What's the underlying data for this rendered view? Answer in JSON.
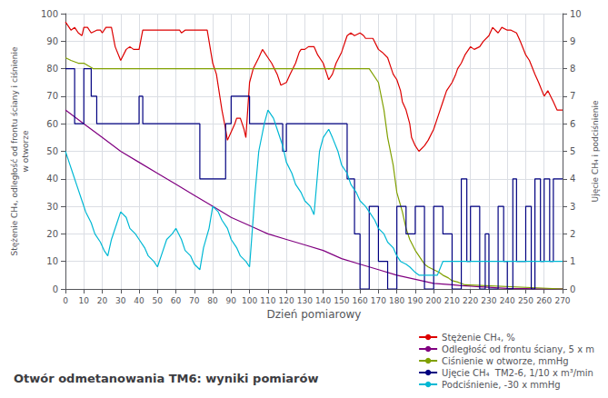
{
  "chart_data": {
    "type": "line",
    "title": "Otwór odmetanowania TM6: wyniki pomiarów",
    "xlabel": "Dzień pomiarowy",
    "ylabel": "Stężenie CH₄, odległość od frontu ściany i ciśnienie\nw otworze",
    "y2label": "Ujęcie CH₄ i podciśnienie",
    "xlim": [
      0,
      270
    ],
    "xticks": [
      0,
      10,
      20,
      30,
      40,
      50,
      60,
      70,
      80,
      90,
      100,
      110,
      120,
      130,
      140,
      150,
      160,
      170,
      180,
      190,
      200,
      210,
      220,
      230,
      240,
      250,
      260,
      270
    ],
    "ylim": [
      0,
      100
    ],
    "yticks": [
      0,
      10,
      20,
      30,
      40,
      50,
      60,
      70,
      80,
      90,
      100
    ],
    "y2lim": [
      0,
      10
    ],
    "y2ticks": [
      0,
      1,
      2,
      3,
      4,
      5,
      6,
      7,
      8,
      9,
      10
    ],
    "grid": true,
    "legend": "lower right",
    "series": [
      {
        "name": "Stężenie CH₄, %",
        "color": "#dd0000",
        "x": [
          0,
          1,
          3,
          5,
          7,
          9,
          10,
          12,
          14,
          17,
          19,
          20,
          22,
          25,
          27,
          30,
          33,
          35,
          37,
          40,
          42,
          45,
          47,
          50,
          52,
          53,
          55,
          57,
          60,
          62,
          63,
          65,
          67,
          70,
          72,
          75,
          77,
          80,
          82,
          85,
          87,
          88,
          90,
          92,
          93,
          95,
          97,
          98,
          100,
          102,
          105,
          107,
          108,
          110,
          112,
          115,
          117,
          120,
          122,
          125,
          127,
          128,
          130,
          132,
          135,
          137,
          140,
          142,
          143,
          145,
          147,
          150,
          152,
          153,
          155,
          157,
          160,
          162,
          163,
          165,
          167,
          170,
          172,
          175,
          177,
          178,
          180,
          182,
          183,
          185,
          187,
          188,
          190,
          192,
          195,
          197,
          200,
          202,
          205,
          207,
          210,
          212,
          213,
          215,
          217,
          220,
          222,
          225,
          227,
          230,
          232,
          235,
          237,
          240,
          242,
          245,
          247,
          250,
          252,
          255,
          257,
          260,
          262,
          265,
          267,
          270
        ],
        "values": [
          97,
          96,
          94,
          95,
          93,
          92,
          95,
          95,
          93,
          94,
          94,
          93,
          95,
          95,
          88,
          83,
          87,
          88,
          87,
          87,
          94,
          94,
          94,
          94,
          94,
          94,
          94,
          94,
          94,
          94,
          93,
          94,
          94,
          94,
          94,
          94,
          94,
          82,
          78,
          65,
          58,
          54,
          57,
          60,
          62,
          62,
          58,
          55,
          75,
          80,
          84,
          87,
          86,
          84,
          82,
          78,
          74,
          75,
          78,
          82,
          86,
          87,
          87,
          88,
          88,
          85,
          82,
          78,
          76,
          78,
          82,
          86,
          90,
          92,
          93,
          92,
          93,
          92,
          91,
          91,
          91,
          87,
          86,
          84,
          80,
          78,
          76,
          72,
          68,
          65,
          60,
          55,
          52,
          50,
          52,
          54,
          58,
          62,
          68,
          72,
          75,
          78,
          80,
          82,
          85,
          88,
          87,
          88,
          90,
          92,
          95,
          93,
          95,
          94,
          94,
          93,
          90,
          85,
          83,
          78,
          75,
          70,
          72,
          68,
          65,
          65
        ]
      },
      {
        "name": "Odległość od frontu ściany, 5 x m",
        "color": "#800080",
        "x": [
          0,
          10,
          20,
          30,
          40,
          50,
          60,
          70,
          80,
          90,
          100,
          110,
          120,
          130,
          140,
          150,
          160,
          170,
          180,
          190,
          200,
          205,
          210,
          215,
          220,
          225,
          230,
          235,
          240,
          245,
          250,
          255,
          260,
          265,
          270
        ],
        "values": [
          65,
          60,
          55,
          50,
          46,
          42,
          38,
          34,
          30,
          26,
          23,
          20,
          18,
          16,
          14,
          11,
          9,
          7,
          5,
          3.5,
          2,
          1.8,
          1.5,
          1.2,
          1.0,
          0.8,
          0.6,
          0.4,
          0.2,
          0.15,
          0.1,
          0.05,
          0.02,
          0.01,
          0.01
        ]
      },
      {
        "name": "Ciśnienie w otworze, mmHg",
        "color": "#80a000",
        "x": [
          0,
          3,
          7,
          10,
          15,
          17,
          19,
          20,
          22,
          100,
          105,
          110,
          120,
          130,
          140,
          150,
          155,
          160,
          165,
          170,
          173,
          175,
          178,
          180,
          183,
          185,
          187,
          190,
          193,
          195,
          197,
          200,
          203,
          205,
          208,
          210,
          213,
          215,
          217,
          270
        ],
        "values": [
          84,
          83,
          82,
          82,
          80,
          80,
          80,
          80,
          80,
          80,
          80,
          80,
          80,
          80,
          80,
          80,
          80,
          80,
          80,
          75,
          65,
          55,
          45,
          35,
          28,
          22,
          18,
          14,
          11,
          9,
          8,
          7,
          6,
          5,
          4,
          3,
          2.5,
          2,
          1.5,
          0
        ]
      },
      {
        "name": "Ujęcie CH₄  TM2-6, 1/10 x m³/min",
        "color": "#000080",
        "x": [
          0,
          0,
          5,
          5,
          10,
          10,
          14,
          14,
          17,
          17,
          20,
          20,
          23,
          23,
          25,
          25,
          30,
          30,
          35,
          35,
          40,
          40,
          42,
          42,
          47,
          47,
          50,
          50,
          55,
          55,
          60,
          60,
          63,
          63,
          65,
          65,
          70,
          70,
          73,
          73,
          75,
          75,
          80,
          80,
          83,
          83,
          87,
          87,
          90,
          90,
          95,
          95,
          100,
          100,
          103,
          103,
          107,
          107,
          110,
          110,
          115,
          115,
          118,
          118,
          120,
          120,
          125,
          125,
          128,
          128,
          133,
          133,
          135,
          135,
          140,
          140,
          143,
          143,
          145,
          145,
          150,
          150,
          153,
          153,
          157,
          157,
          160,
          160,
          165,
          165,
          170,
          170,
          175,
          175,
          180,
          180,
          185,
          185,
          190,
          190,
          195,
          195,
          200,
          200,
          205,
          205,
          210,
          210,
          215,
          215,
          218,
          218,
          220,
          220,
          225,
          225,
          228,
          228,
          230,
          230,
          235,
          235,
          238,
          238,
          240,
          240,
          243,
          243,
          245,
          245,
          250,
          250,
          253,
          253,
          255,
          255,
          258,
          258,
          260,
          260,
          263,
          263,
          265,
          265,
          268,
          268,
          270
        ],
        "values": [
          80,
          80,
          80,
          60,
          60,
          80,
          80,
          70,
          70,
          60,
          60,
          60,
          60,
          60,
          60,
          60,
          60,
          60,
          60,
          60,
          60,
          70,
          70,
          60,
          60,
          60,
          60,
          60,
          60,
          60,
          60,
          60,
          60,
          60,
          60,
          60,
          60,
          60,
          60,
          40,
          40,
          40,
          40,
          40,
          40,
          40,
          40,
          60,
          60,
          70,
          70,
          70,
          70,
          60,
          60,
          60,
          60,
          60,
          60,
          60,
          60,
          60,
          60,
          50,
          50,
          60,
          60,
          60,
          60,
          60,
          60,
          60,
          60,
          60,
          60,
          60,
          60,
          60,
          60,
          60,
          60,
          60,
          60,
          40,
          40,
          20,
          20,
          0,
          0,
          30,
          30,
          10,
          10,
          0,
          0,
          30,
          30,
          20,
          20,
          30,
          30,
          0,
          0,
          30,
          30,
          20,
          20,
          0,
          0,
          40,
          40,
          10,
          10,
          30,
          30,
          0,
          0,
          20,
          20,
          0,
          0,
          30,
          30,
          10,
          10,
          0,
          0,
          40,
          40,
          10,
          10,
          30,
          30,
          0,
          0,
          40,
          40,
          10,
          10,
          40,
          40,
          10,
          10,
          40,
          40,
          40,
          40
        ]
      },
      {
        "name": "Podciśnienie, -30 x mmHg",
        "color": "#00b8d4",
        "x": [
          0,
          2,
          4,
          6,
          9,
          11,
          14,
          16,
          19,
          21,
          23,
          25,
          28,
          30,
          33,
          35,
          38,
          40,
          43,
          45,
          48,
          50,
          53,
          55,
          58,
          60,
          63,
          65,
          68,
          70,
          73,
          75,
          78,
          80,
          83,
          85,
          88,
          90,
          93,
          95,
          98,
          100,
          103,
          105,
          108,
          110,
          113,
          115,
          118,
          120,
          123,
          125,
          128,
          130,
          133,
          135,
          138,
          140,
          143,
          145,
          148,
          150,
          153,
          155,
          158,
          160,
          163,
          165,
          168,
          170,
          173,
          175,
          178,
          180,
          182,
          185,
          187,
          190,
          192,
          195,
          197,
          200,
          202,
          205,
          207,
          210,
          212,
          215,
          217,
          220,
          222,
          225,
          227,
          230,
          232,
          235,
          237,
          240,
          242,
          245,
          247,
          250,
          252,
          255,
          257,
          260,
          262,
          265,
          267,
          270
        ],
        "values": [
          50,
          46,
          42,
          38,
          32,
          28,
          24,
          20,
          17,
          14,
          12,
          18,
          24,
          28,
          26,
          22,
          20,
          18,
          15,
          12,
          10,
          8,
          14,
          18,
          20,
          22,
          18,
          14,
          12,
          9,
          7,
          15,
          22,
          30,
          28,
          25,
          22,
          18,
          15,
          12,
          10,
          8,
          35,
          50,
          60,
          65,
          62,
          58,
          52,
          46,
          42,
          38,
          35,
          32,
          30,
          27,
          50,
          55,
          58,
          55,
          50,
          45,
          42,
          38,
          35,
          32,
          30,
          28,
          25,
          22,
          20,
          17,
          15,
          12,
          10,
          9,
          8,
          6,
          5,
          5,
          5,
          5,
          5,
          10,
          10,
          10,
          10,
          10,
          10,
          10,
          10,
          10,
          10,
          10,
          10,
          10,
          10,
          10,
          10,
          10,
          10,
          10,
          10,
          10,
          10,
          10,
          10,
          10,
          10,
          10
        ]
      }
    ]
  }
}
